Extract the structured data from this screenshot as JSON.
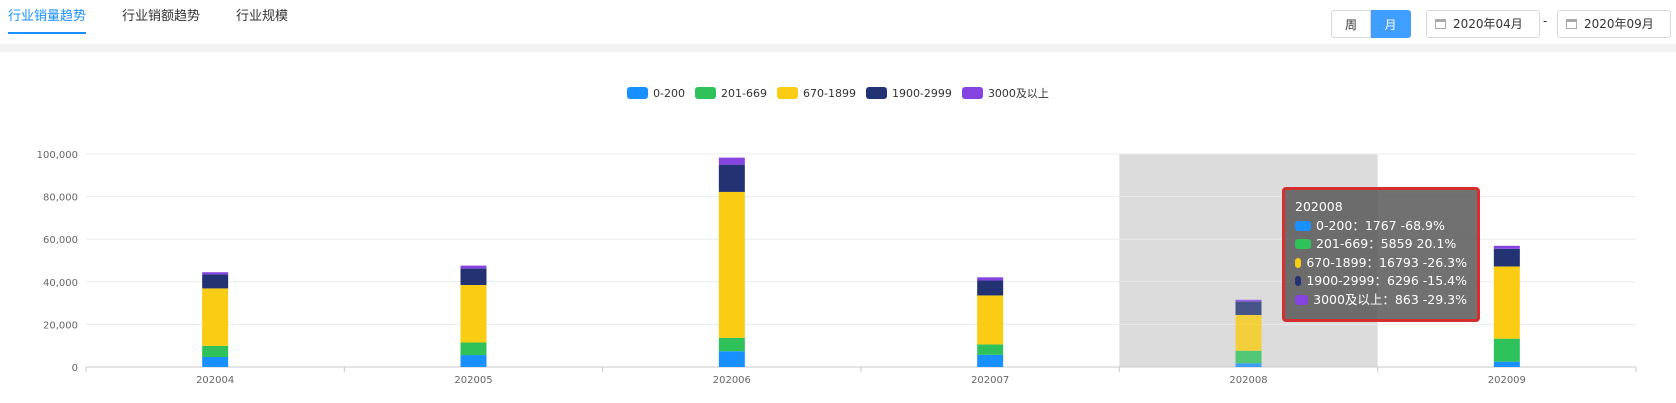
{
  "tabs": [
    {
      "label": "行业销量趋势",
      "active": true
    },
    {
      "label": "行业销额趋势",
      "active": false
    },
    {
      "label": "行业规模",
      "active": false
    }
  ],
  "controls": {
    "week_label": "周",
    "month_label": "月",
    "active_period": "月",
    "start_date": "2020年04月",
    "end_date": "2020年09月",
    "separator": "-"
  },
  "colors": {
    "accent": "#1890ff",
    "highlight_band": "#dcdcdc",
    "tooltip_border": "#d32f2f"
  },
  "chart_data": {
    "type": "bar",
    "stacked": true,
    "categories": [
      "202004",
      "202005",
      "202006",
      "202007",
      "202008",
      "202009"
    ],
    "ylim": [
      0,
      100000
    ],
    "yticks": [
      0,
      20000,
      40000,
      60000,
      80000,
      100000
    ],
    "ytick_labels": [
      "0",
      "20,000",
      "40,000",
      "60,000",
      "80,000",
      "100,000"
    ],
    "legend_position": "top-center",
    "grid": true,
    "highlighted_category": "202008",
    "series": [
      {
        "name": "0-200",
        "color": "#1890ff",
        "values": [
          4700,
          5600,
          7400,
          5700,
          1767,
          2500
        ]
      },
      {
        "name": "201-669",
        "color": "#2fc25b",
        "values": [
          5200,
          5900,
          6300,
          4900,
          5859,
          10800
        ]
      },
      {
        "name": "670-1899",
        "color": "#facc14",
        "values": [
          27000,
          27000,
          68500,
          23000,
          16793,
          33900
        ]
      },
      {
        "name": "1900-2999",
        "color": "#223273",
        "values": [
          6600,
          7700,
          12800,
          7000,
          6296,
          8300
        ]
      },
      {
        "name": "3000及以上",
        "color": "#8543e0",
        "values": [
          1000,
          1400,
          3300,
          1500,
          863,
          1400
        ]
      }
    ]
  },
  "tooltip": {
    "title": "202008",
    "rows": [
      {
        "text": "0-200：1767  -68.9%",
        "color": "#1890ff"
      },
      {
        "text": "201-669：5859  20.1%",
        "color": "#2fc25b"
      },
      {
        "text": "670-1899：16793  -26.3%",
        "color": "#facc14"
      },
      {
        "text": "1900-2999：6296  -15.4%",
        "color": "#223273"
      },
      {
        "text": "3000及以上：863  -29.3%",
        "color": "#8543e0"
      }
    ]
  }
}
